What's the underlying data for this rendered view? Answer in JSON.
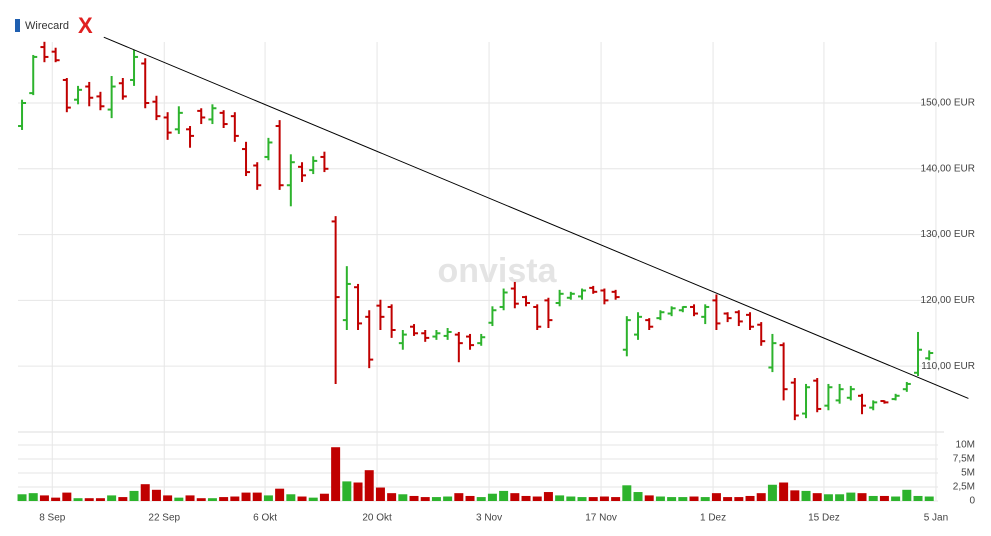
{
  "chart_data": {
    "type": "ohlc",
    "legend": "Wirecard",
    "legend_color": "#1f5fb0",
    "close_button": "X",
    "watermark": "onvista",
    "up_color": "#2db32d",
    "down_color": "#c00000",
    "line_color": "#000000",
    "xlim": [
      -0.36,
      82.32
    ],
    "xticks": [
      {
        "value": 2.7,
        "label": "8 Sep"
      },
      {
        "value": 12.7,
        "label": "22 Sep"
      },
      {
        "value": 21.7,
        "label": "6 Okt"
      },
      {
        "value": 31.7,
        "label": "20 Okt"
      },
      {
        "value": 41.7,
        "label": "3 Nov"
      },
      {
        "value": 51.7,
        "label": "17 Nov"
      },
      {
        "value": 61.7,
        "label": "1 Dez"
      },
      {
        "value": 71.6,
        "label": "15 Dez"
      },
      {
        "value": 81.6,
        "label": "5 Jan"
      }
    ],
    "ylim": [
      100.3,
      159.27
    ],
    "yticks": [
      {
        "value": 110,
        "label": "110,00 EUR"
      },
      {
        "value": 120,
        "label": "120,00 EUR"
      },
      {
        "value": 130,
        "label": "130,00 EUR"
      },
      {
        "value": 140,
        "label": "140,00 EUR"
      },
      {
        "value": 150,
        "label": "150,00 EUR"
      }
    ],
    "volume_lim": [
      0,
      11960000
    ],
    "volume_ticks": [
      0,
      {
        "value": 2500000,
        "label": "2,5M"
      },
      {
        "value": 5000000,
        "label": "5M"
      },
      {
        "value": 7500000,
        "label": "7,5M"
      },
      {
        "value": 10000000,
        "label": "10M"
      }
    ],
    "grid": true,
    "trendline": {
      "x": [
        7.3,
        84.5
      ],
      "y": [
        160.0,
        105.1
      ]
    },
    "open": [
      146.5,
      151.5,
      158.5,
      157.8,
      153.5,
      150.5,
      152.5,
      151.0,
      149.0,
      153.0,
      153.5,
      156.0,
      150.2,
      147.8,
      146.0,
      146.0,
      148.8,
      147.5,
      148.5,
      148.0,
      143.0,
      140.5,
      141.8,
      146.5,
      137.5,
      140.3,
      139.8,
      141.8,
      132.0,
      117.0,
      122.0,
      117.5,
      119.2,
      119.0,
      113.5,
      116.0,
      115.0,
      114.5,
      114.6,
      114.8,
      114.5,
      113.5,
      116.6,
      119.0,
      121.8,
      120.5,
      119.0,
      120.0,
      119.6,
      120.4,
      120.6,
      121.9,
      121.5,
      121.3,
      112.5,
      114.8,
      117.0,
      117.3,
      118.0,
      118.5,
      119.0,
      117.5,
      120.0,
      118.0,
      118.2,
      117.8,
      116.3,
      109.8,
      113.2,
      107.5,
      102.8,
      107.8,
      104.0,
      104.8,
      105.2,
      105.5,
      103.7,
      104.7,
      105.0,
      106.5,
      109.0,
      111.2
    ],
    "high": [
      150.5,
      157.3,
      159.3,
      158.4,
      153.8,
      152.6,
      153.2,
      151.7,
      154.1,
      153.8,
      158.1,
      156.8,
      151.1,
      148.6,
      149.5,
      146.5,
      149.2,
      149.8,
      148.9,
      148.6,
      144.1,
      141.0,
      144.7,
      147.4,
      142.2,
      141.0,
      141.9,
      142.6,
      132.8,
      125.2,
      122.5,
      118.5,
      120.1,
      119.4,
      115.5,
      116.4,
      115.5,
      115.5,
      115.8,
      115.2,
      114.9,
      114.9,
      119.1,
      121.8,
      122.8,
      120.7,
      119.4,
      120.4,
      121.6,
      121.3,
      121.8,
      122.2,
      121.8,
      121.6,
      117.6,
      118.2,
      117.3,
      118.5,
      119.1,
      119.1,
      119.4,
      119.4,
      120.9,
      118.2,
      118.5,
      118.2,
      116.7,
      114.9,
      113.6,
      108.2,
      107.3,
      108.2,
      107.3,
      107.3,
      107.0,
      105.8,
      104.8,
      104.8,
      105.8,
      107.6,
      115.2,
      112.4
    ],
    "low": [
      145.9,
      151.2,
      156.2,
      156.2,
      148.6,
      149.8,
      149.5,
      148.9,
      147.7,
      150.5,
      152.6,
      149.2,
      147.4,
      144.4,
      145.3,
      143.2,
      146.8,
      146.8,
      146.2,
      144.1,
      138.9,
      136.8,
      141.3,
      136.8,
      134.3,
      138.0,
      139.2,
      139.5,
      107.3,
      115.5,
      115.5,
      109.7,
      115.5,
      114.3,
      112.5,
      114.6,
      113.7,
      114.0,
      114.0,
      110.6,
      112.5,
      113.1,
      116.1,
      118.5,
      118.8,
      119.1,
      115.5,
      115.8,
      119.1,
      120.1,
      120.1,
      121.0,
      119.4,
      120.1,
      111.5,
      114.0,
      115.5,
      117.0,
      117.6,
      118.2,
      117.6,
      116.4,
      115.5,
      116.7,
      116.1,
      115.5,
      113.1,
      109.1,
      104.8,
      101.8,
      102.1,
      103.0,
      103.3,
      104.3,
      104.8,
      102.7,
      103.3,
      104.3,
      104.8,
      106.1,
      108.5,
      110.9
    ],
    "close": [
      150.0,
      157.0,
      157.0,
      156.5,
      149.3,
      152.0,
      150.8,
      149.5,
      152.5,
      151.0,
      157.0,
      150.0,
      148.0,
      145.5,
      148.5,
      145.0,
      147.8,
      149.2,
      146.8,
      145.0,
      139.5,
      137.5,
      144.0,
      137.5,
      141.0,
      139.0,
      141.2,
      140.0,
      120.5,
      122.5,
      116.5,
      111.0,
      117.5,
      115.5,
      114.8,
      115.0,
      114.3,
      115.0,
      115.2,
      113.5,
      113.2,
      114.4,
      118.5,
      121.2,
      119.5,
      119.6,
      116.0,
      117.0,
      121.0,
      121.0,
      121.5,
      121.3,
      120.0,
      120.5,
      117.0,
      117.5,
      116.0,
      118.2,
      118.8,
      119.0,
      118.0,
      119.0,
      116.5,
      117.3,
      116.8,
      116.0,
      113.8,
      113.5,
      106.5,
      102.5,
      106.8,
      103.5,
      106.8,
      106.5,
      106.5,
      104.0,
      104.5,
      104.5,
      105.5,
      107.3,
      112.5,
      112.0
    ],
    "volume": [
      1200000,
      1400000,
      1000000,
      600000,
      1500000,
      500000,
      500000,
      500000,
      1000000,
      700000,
      1800000,
      3000000,
      2000000,
      1000000,
      600000,
      1000000,
      500000,
      500000,
      700000,
      800000,
      1500000,
      1500000,
      1000000,
      2200000,
      1200000,
      800000,
      600000,
      1300000,
      9600000,
      3500000,
      3300000,
      5500000,
      2400000,
      1400000,
      1200000,
      900000,
      700000,
      700000,
      800000,
      1400000,
      900000,
      700000,
      1300000,
      1800000,
      1400000,
      900000,
      800000,
      1600000,
      1000000,
      800000,
      700000,
      700000,
      800000,
      700000,
      2800000,
      1600000,
      1000000,
      800000,
      700000,
      700000,
      800000,
      700000,
      1400000,
      700000,
      700000,
      900000,
      1400000,
      2900000,
      3300000,
      1900000,
      1800000,
      1400000,
      1200000,
      1200000,
      1500000,
      1400000,
      900000,
      900000,
      800000,
      2000000,
      900000,
      800000
    ]
  }
}
